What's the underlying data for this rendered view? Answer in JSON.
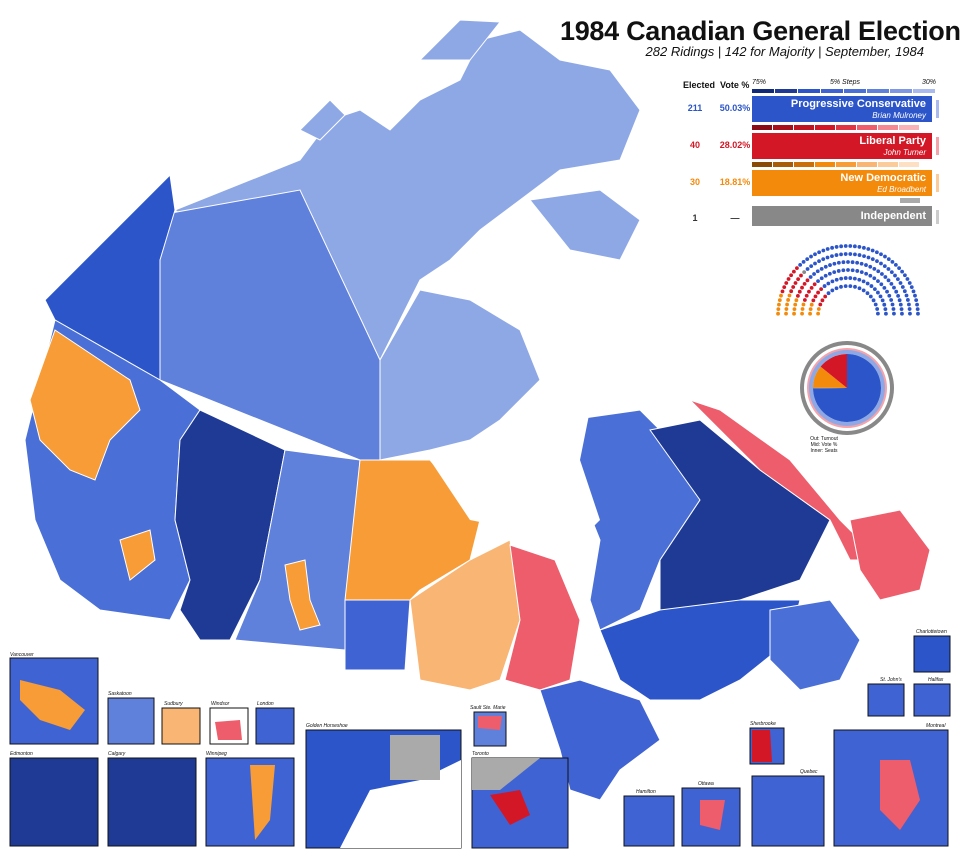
{
  "title": "1984 Canadian General Election",
  "subtitle": "282 Ridings | 142 for Majority | September, 1984",
  "legend": {
    "header_elected": "Elected",
    "header_vote": "Vote %",
    "scale_label": "5% Steps",
    "scale_high": "75%",
    "scale_low": "30%"
  },
  "parties": [
    {
      "name": "Progressive Conservative",
      "leader": "Brian Mulroney",
      "seats": "211",
      "vote": "50.03%",
      "color": "#2b55c9",
      "seat_count": 211,
      "vote_value": 50.03
    },
    {
      "name": "Liberal Party",
      "leader": "John Turner",
      "seats": "40",
      "vote": "28.02%",
      "color": "#d41726",
      "seat_count": 40,
      "vote_value": 28.02
    },
    {
      "name": "New Democratic",
      "leader": "Ed Broadbent",
      "seats": "30",
      "vote": "18.81%",
      "color": "#f48a0b",
      "seat_count": 30,
      "vote_value": 18.81
    },
    {
      "name": "Independent",
      "leader": "",
      "seats": "1",
      "vote": "—",
      "color": "#888888",
      "seat_count": 1,
      "vote_value": 0
    }
  ],
  "pie_caption": [
    "Out: Turnout",
    "Mid: Vote %",
    "Inner: Seats"
  ],
  "insets": {
    "vancouver": "Vancouver",
    "saskatoon": "Saskatoon",
    "sudbury": "Sudbury",
    "windsor": "Windsor",
    "london": "London",
    "edmonton": "Edmonton",
    "calgary": "Calgary",
    "winnipeg": "Winnipeg",
    "golden_horseshoe": "Golden Horseshoe",
    "sault_ste_marie": "Sault Ste. Marie",
    "toronto": "Toronto",
    "hamilton": "Hamilton",
    "ottawa": "Ottawa",
    "sherbrooke": "Sherbrooke",
    "quebec": "Quebec",
    "montreal": "Montreal",
    "charlottetown": "Charlottetown",
    "st_johns": "St. John's",
    "halifax": "Halifax"
  }
}
